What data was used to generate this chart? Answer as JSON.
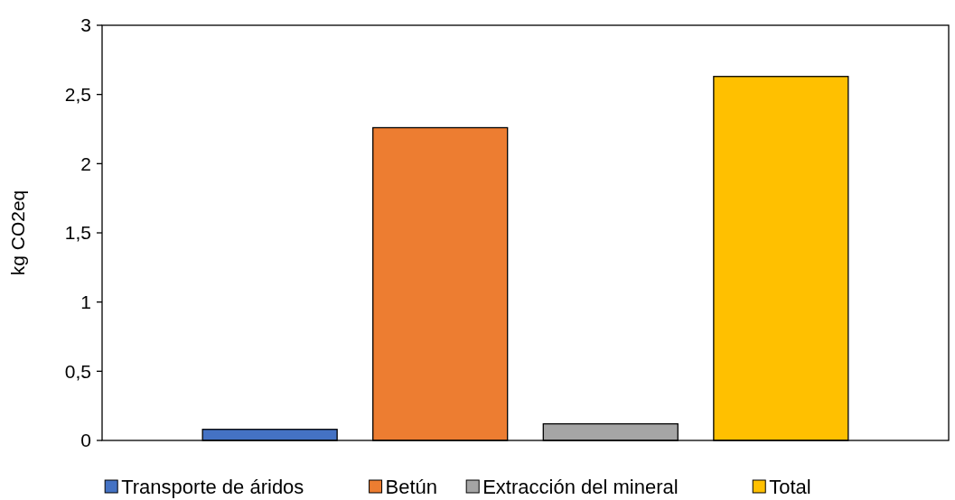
{
  "chart_data": {
    "type": "bar",
    "ylabel": "kg CO2eq",
    "categories": [
      null
    ],
    "series": [
      {
        "name": "Transporte de áridos",
        "color": "#4472c4",
        "values": [
          0.08
        ]
      },
      {
        "name": "Betún",
        "color": "#ed7d31",
        "values": [
          2.26
        ]
      },
      {
        "name": "Extracción del mineral",
        "color": "#a5a5a5",
        "values": [
          0.12
        ]
      },
      {
        "name": "Total",
        "color": "#ffc000",
        "values": [
          2.63
        ]
      }
    ],
    "ylim": [
      0,
      3
    ],
    "yticks": [
      0,
      {
        "value": 0.5,
        "label": "0,5"
      },
      1,
      {
        "value": 1.5,
        "label": "1,5"
      },
      2,
      {
        "value": 2.5,
        "label": "2,5"
      },
      3
    ],
    "grid": false,
    "legend": "bottom"
  }
}
